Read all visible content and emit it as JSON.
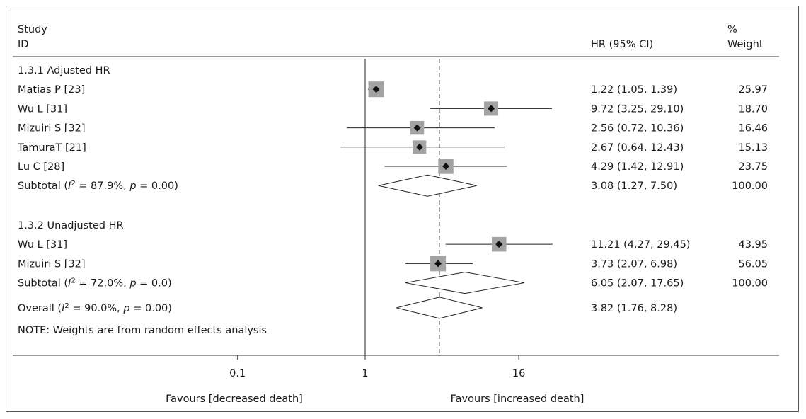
{
  "chart_data": {
    "type": "forest",
    "x_scale": "log",
    "x_ticks": [
      {
        "label": "0.1",
        "value": 0.1
      },
      {
        "label": "1",
        "value": 1
      },
      {
        "label": "16",
        "value": 16
      }
    ],
    "reference_line_value": 1,
    "overall_line_value": 3.82,
    "x_label_left": "Favours [decreased death]",
    "x_label_right": "Favours [increased death]",
    "header": {
      "study_line1": "Study",
      "study_line2": "ID",
      "hr": "HR (95% CI)",
      "weight_line1": "%",
      "weight_line2": "Weight"
    },
    "note": "NOTE: Weights are from random effects analysis",
    "groups": [
      {
        "label": "1.3.1 Adjusted HR",
        "studies": [
          {
            "name": "Matias P [23]",
            "hr": 1.22,
            "lo": 1.05,
            "hi": 1.39,
            "ci_text": "1.22 (1.05, 1.39)",
            "weight": "25.97"
          },
          {
            "name": "Wu L [31]",
            "hr": 9.72,
            "lo": 3.25,
            "hi": 29.1,
            "ci_text": "9.72 (3.25, 29.10)",
            "weight": "18.70"
          },
          {
            "name": "Mizuiri S [32]",
            "hr": 2.56,
            "lo": 0.72,
            "hi": 10.36,
            "ci_text": "2.56 (0.72, 10.36)",
            "weight": "16.46"
          },
          {
            "name": "TamuraT [21]",
            "hr": 2.67,
            "lo": 0.64,
            "hi": 12.43,
            "ci_text": "2.67 (0.64, 12.43)",
            "weight": "15.13"
          },
          {
            "name": "Lu C [28]",
            "hr": 4.29,
            "lo": 1.42,
            "hi": 12.91,
            "ci_text": "4.29 (1.42, 12.91)",
            "weight": "23.75"
          }
        ],
        "subtotal": {
          "prefix": "Subtotal (",
          "i_symbol": "I",
          "sup": "2",
          "mid": " = 87.9%, ",
          "p_symbol": "p",
          "suffix": " = 0.00)",
          "hr": 3.08,
          "lo": 1.27,
          "hi": 7.5,
          "ci_text": "3.08 (1.27, 7.50)",
          "weight": "100.00"
        }
      },
      {
        "label": "1.3.2 Unadjusted HR",
        "studies": [
          {
            "name": "Wu L [31]",
            "hr": 11.21,
            "lo": 4.27,
            "hi": 29.45,
            "ci_text": "11.21 (4.27, 29.45)",
            "weight": "43.95"
          },
          {
            "name": "Mizuiri S [32]",
            "hr": 3.73,
            "lo": 2.07,
            "hi": 6.98,
            "ci_text": "3.73 (2.07, 6.98)",
            "weight": "56.05"
          }
        ],
        "subtotal": {
          "prefix": "Subtotal (",
          "i_symbol": "I",
          "sup": "2",
          "mid": " = 72.0%, ",
          "p_symbol": "p",
          "suffix": " = 0.0)",
          "hr": 6.05,
          "lo": 2.07,
          "hi": 17.65,
          "ci_text": "6.05 (2.07, 17.65)",
          "weight": "100.00"
        }
      }
    ],
    "overall": {
      "prefix": "Overall (",
      "i_symbol": "I",
      "sup": "2",
      "mid": " = 90.0%, ",
      "p_symbol": "p",
      "suffix": " = 0.00)",
      "hr": 3.82,
      "lo": 1.76,
      "hi": 8.28,
      "ci_text": "3.82 (1.76, 8.28)",
      "weight": ""
    }
  }
}
